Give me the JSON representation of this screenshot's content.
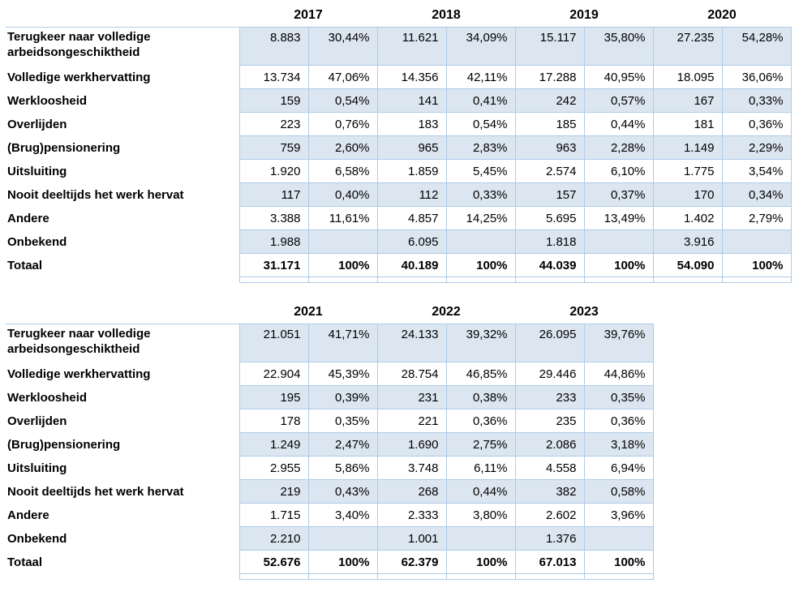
{
  "style": {
    "shaded_row_fill": "#dce6f1",
    "border_color": "#aecbe8",
    "text_color": "#000000",
    "background": "#ffffff"
  },
  "tables": [
    {
      "years": [
        "2017",
        "2018",
        "2019",
        "2020"
      ],
      "rows": [
        {
          "label": "Terugkeer naar volledige arbeidsongeschiktheid",
          "values": [
            "8.883",
            "30,44%",
            "11.621",
            "34,09%",
            "15.117",
            "35,80%",
            "27.235",
            "54,28%"
          ]
        },
        {
          "label": "Volledige werkhervatting",
          "values": [
            "13.734",
            "47,06%",
            "14.356",
            "42,11%",
            "17.288",
            "40,95%",
            "18.095",
            "36,06%"
          ]
        },
        {
          "label": "Werkloosheid",
          "values": [
            "159",
            "0,54%",
            "141",
            "0,41%",
            "242",
            "0,57%",
            "167",
            "0,33%"
          ]
        },
        {
          "label": "Overlijden",
          "values": [
            "223",
            "0,76%",
            "183",
            "0,54%",
            "185",
            "0,44%",
            "181",
            "0,36%"
          ]
        },
        {
          "label": "(Brug)pensionering",
          "values": [
            "759",
            "2,60%",
            "965",
            "2,83%",
            "963",
            "2,28%",
            "1.149",
            "2,29%"
          ]
        },
        {
          "label": "Uitsluiting",
          "values": [
            "1.920",
            "6,58%",
            "1.859",
            "5,45%",
            "2.574",
            "6,10%",
            "1.775",
            "3,54%"
          ]
        },
        {
          "label": "Nooit deeltijds het werk hervat",
          "values": [
            "117",
            "0,40%",
            "112",
            "0,33%",
            "157",
            "0,37%",
            "170",
            "0,34%"
          ]
        },
        {
          "label": "Andere",
          "values": [
            "3.388",
            "11,61%",
            "4.857",
            "14,25%",
            "5.695",
            "13,49%",
            "1.402",
            "2,79%"
          ]
        },
        {
          "label": "Onbekend",
          "values": [
            "1.988",
            "",
            "6.095",
            "",
            "1.818",
            "",
            "3.916",
            ""
          ]
        },
        {
          "label": "Totaal",
          "values": [
            "31.171",
            "100%",
            "40.189",
            "100%",
            "44.039",
            "100%",
            "54.090",
            "100%"
          ]
        }
      ]
    },
    {
      "years": [
        "2021",
        "2022",
        "2023"
      ],
      "rows": [
        {
          "label": "Terugkeer naar volledige arbeidsongeschiktheid",
          "values": [
            "21.051",
            "41,71%",
            "24.133",
            "39,32%",
            "26.095",
            "39,76%"
          ]
        },
        {
          "label": "Volledige werkhervatting",
          "values": [
            "22.904",
            "45,39%",
            "28.754",
            "46,85%",
            "29.446",
            "44,86%"
          ]
        },
        {
          "label": "Werkloosheid",
          "values": [
            "195",
            "0,39%",
            "231",
            "0,38%",
            "233",
            "0,35%"
          ]
        },
        {
          "label": "Overlijden",
          "values": [
            "178",
            "0,35%",
            "221",
            "0,36%",
            "235",
            "0,36%"
          ]
        },
        {
          "label": "(Brug)pensionering",
          "values": [
            "1.249",
            "2,47%",
            "1.690",
            "2,75%",
            "2.086",
            "3,18%"
          ]
        },
        {
          "label": "Uitsluiting",
          "values": [
            "2.955",
            "5,86%",
            "3.748",
            "6,11%",
            "4.558",
            "6,94%"
          ]
        },
        {
          "label": "Nooit deeltijds het werk hervat",
          "values": [
            "219",
            "0,43%",
            "268",
            "0,44%",
            "382",
            "0,58%"
          ]
        },
        {
          "label": "Andere",
          "values": [
            "1.715",
            "3,40%",
            "2.333",
            "3,80%",
            "2.602",
            "3,96%"
          ]
        },
        {
          "label": "Onbekend",
          "values": [
            "2.210",
            "",
            "1.001",
            "",
            "1.376",
            ""
          ]
        },
        {
          "label": "Totaal",
          "values": [
            "52.676",
            "100%",
            "62.379",
            "100%",
            "67.013",
            "100%"
          ]
        }
      ]
    }
  ]
}
